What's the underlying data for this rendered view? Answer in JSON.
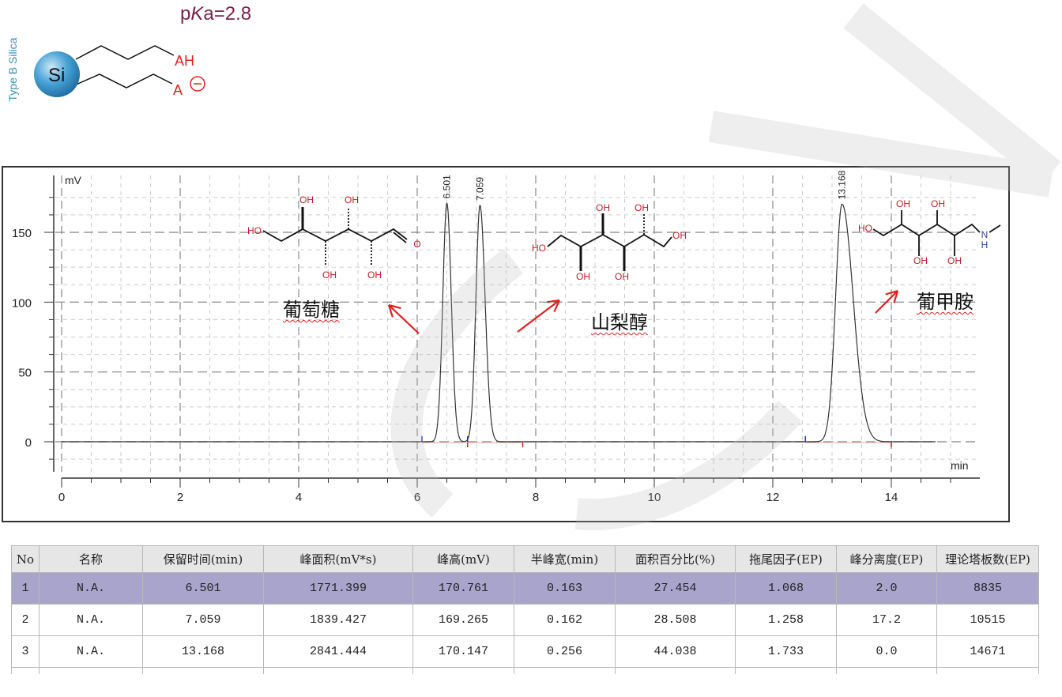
{
  "header": {
    "pka_prefix": "p",
    "pka_k": "K",
    "pka_rest": "a=2.8",
    "silica_label": "Type B Silica",
    "si_label": "Si",
    "group_acid": "AH",
    "group_anion": "A",
    "anion_charge": "⊖"
  },
  "colors": {
    "trace": "#333333",
    "acid_group": "#e0201c",
    "pka": "#7a1f4a",
    "silica": "#3a8fb8",
    "selected_row": "#a9a4cc",
    "arrow": "#e0201c"
  },
  "annotations": [
    {
      "label": "葡萄糖",
      "peak": 1
    },
    {
      "label": "山梨醇",
      "peak": 2
    },
    {
      "label": "葡甲胺",
      "peak": 3
    }
  ],
  "molecules": {
    "glucose": [
      "HO",
      "OH",
      "OH",
      "OH",
      "OH",
      "O"
    ],
    "sorbitol": [
      "HO",
      "OH",
      "OH",
      "OH",
      "OH",
      "OH"
    ],
    "meglumine": [
      "HO",
      "OH",
      "OH",
      "OH",
      "OH",
      "N",
      "H"
    ]
  },
  "chart_data": {
    "type": "line",
    "ylabel": "mV",
    "xlabel": "min",
    "xlim": [
      0,
      15
    ],
    "ylim": [
      -20,
      185
    ],
    "x_ticks": [
      0,
      2,
      4,
      6,
      8,
      10,
      12,
      14
    ],
    "y_ticks": [
      0,
      50,
      100,
      150
    ],
    "grid": true,
    "trace_range": [
      0,
      14.75
    ],
    "peaks": [
      {
        "label": "6.501",
        "rt": 6.501,
        "height": 170.761,
        "half_width": 0.163,
        "tailing": 1.068
      },
      {
        "label": "7.059",
        "rt": 7.059,
        "height": 169.265,
        "half_width": 0.162,
        "tailing": 1.258
      },
      {
        "label": "13.168",
        "rt": 13.168,
        "height": 170.147,
        "half_width": 0.256,
        "tailing": 1.733
      }
    ],
    "integration_marks": {
      "start": [
        6.08,
        6.85,
        12.55
      ],
      "end": [
        6.85,
        7.78,
        14.0
      ]
    }
  },
  "table": {
    "headers": [
      "No",
      "名称",
      "保留时间(min)",
      "峰面积(mV*s)",
      "峰高(mV)",
      "半峰宽(min)",
      "面积百分比(%)",
      "拖尾因子(EP)",
      "峰分离度(EP)",
      "理论塔板数(EP)"
    ],
    "rows": [
      [
        "1",
        "N.A.",
        "6.501",
        "1771.399",
        "170.761",
        "0.163",
        "27.454",
        "1.068",
        "2.0",
        "8835"
      ],
      [
        "2",
        "N.A.",
        "7.059",
        "1839.427",
        "169.265",
        "0.162",
        "28.508",
        "1.258",
        "17.2",
        "10515"
      ],
      [
        "3",
        "N.A.",
        "13.168",
        "2841.444",
        "170.147",
        "0.256",
        "44.038",
        "1.733",
        "0.0",
        "14671"
      ]
    ]
  }
}
